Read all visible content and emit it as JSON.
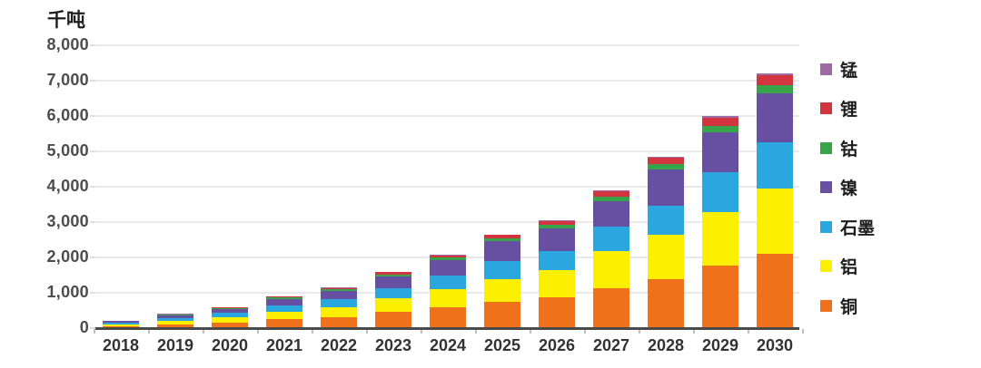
{
  "chart_data": {
    "type": "bar",
    "stacked": true,
    "title": "",
    "unit": "千吨",
    "xlabel": "",
    "ylabel": "千吨",
    "ylim": [
      0,
      8000
    ],
    "grid": "horizontal",
    "legend_position": "right",
    "legend_order_top_to_bottom": [
      "锰",
      "锂",
      "钴",
      "镍",
      "石墨",
      "铝",
      "铜"
    ],
    "yticks": [
      8000,
      7000,
      6000,
      5000,
      4000,
      3000,
      2000,
      1000,
      0
    ],
    "ytick_labels": [
      "8,000",
      "7,000",
      "6,000",
      "5,000",
      "4,000",
      "3,000",
      "2,000",
      "1,000",
      "0"
    ],
    "categories": [
      "2018",
      "2019",
      "2020",
      "2021",
      "2022",
      "2023",
      "2024",
      "2025",
      "2026",
      "2027",
      "2028",
      "2029",
      "2030"
    ],
    "series": [
      {
        "name": "铜",
        "color": "#F0711C",
        "values": [
          60,
          110,
          165,
          250,
          320,
          450,
          590,
          740,
          880,
          1140,
          1390,
          1760,
          2100
        ]
      },
      {
        "name": "铝",
        "color": "#FCF000",
        "values": [
          50,
          95,
          145,
          220,
          280,
          390,
          520,
          650,
          760,
          1030,
          1250,
          1520,
          1850
        ]
      },
      {
        "name": "石墨",
        "color": "#2AA7DE",
        "values": [
          50,
          85,
          120,
          180,
          220,
          300,
          390,
          510,
          530,
          710,
          820,
          1130,
          1300
        ]
      },
      {
        "name": "镍",
        "color": "#6750A1",
        "values": [
          40,
          75,
          120,
          180,
          240,
          330,
          420,
          550,
          660,
          720,
          1030,
          1120,
          1380
        ]
      },
      {
        "name": "钴",
        "color": "#38A449",
        "values": [
          10,
          15,
          25,
          30,
          40,
          50,
          70,
          80,
          90,
          120,
          150,
          200,
          250
        ]
      },
      {
        "name": "锂",
        "color": "#D23440",
        "values": [
          8,
          15,
          20,
          30,
          40,
          60,
          70,
          100,
          110,
          150,
          180,
          230,
          270
        ]
      },
      {
        "name": "锰",
        "color": "#9E6AA3",
        "values": [
          2,
          5,
          5,
          10,
          10,
          20,
          20,
          20,
          30,
          30,
          30,
          40,
          50
        ]
      }
    ],
    "totals": [
      220,
      400,
      600,
      900,
      1150,
      1600,
      2080,
      2650,
      3060,
      3900,
      4850,
      6000,
      7200
    ]
  }
}
